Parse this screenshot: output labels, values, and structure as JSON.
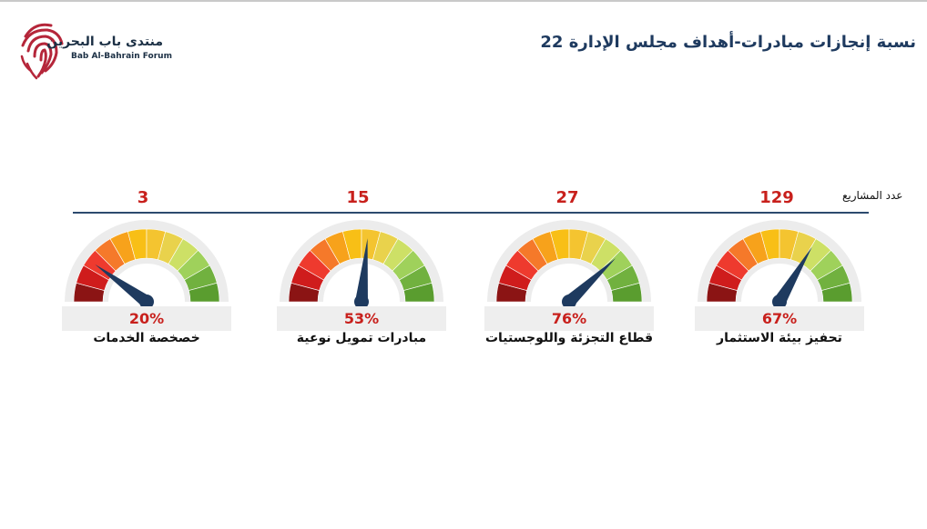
{
  "header": {
    "logo_name_ar": "منتدى باب البحرين",
    "logo_name_en": "Bab Al-Bahrain Forum",
    "title": "نسبة إنجازات مبادرات-أهداف مجلس الإدارة 22"
  },
  "projects_count_label": "عدد المشاريع",
  "gauges": [
    {
      "name": "خصخصة الخدمات",
      "count": "3",
      "percent_label": "20%",
      "percent": 20
    },
    {
      "name": "مبادرات تمويل نوعية",
      "count": "15",
      "percent_label": "53%",
      "percent": 53
    },
    {
      "name": "قطاع التجزئة واللوجستيات",
      "count": "27",
      "percent_label": "76%",
      "percent": 76
    },
    {
      "name": "تحفيز بيئة الاستثمار",
      "count": "129",
      "percent_label": "67%",
      "percent": 67
    }
  ],
  "colors": {
    "title": "#1e3a5f",
    "needle": "#1e3a5f",
    "value_text": "#c8201c",
    "divider": "#2c4a6e",
    "gauge_segments": [
      "#8b1414",
      "#cf1c1c",
      "#ee3a2e",
      "#f5792a",
      "#f7a21b",
      "#f8bf16",
      "#f4c430",
      "#e9d24c",
      "#cde066",
      "#9fd15b",
      "#71b13f",
      "#5a9d2f"
    ]
  },
  "icons": {
    "logo": "fingerprint-logo-icon",
    "needle": "gauge-needle-icon"
  }
}
